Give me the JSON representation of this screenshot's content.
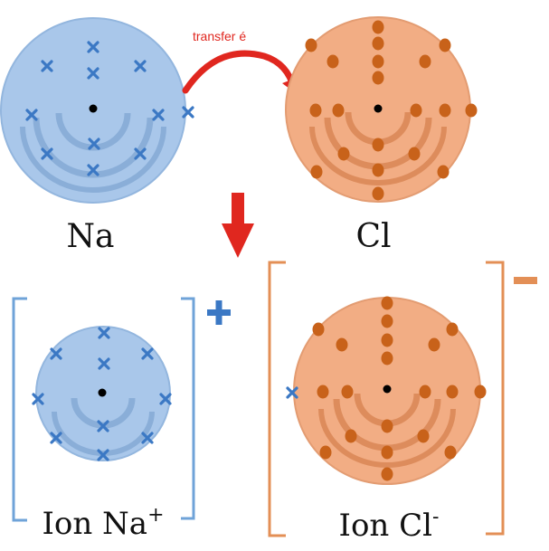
{
  "transfer_label": "transfer é",
  "atoms": {
    "na": {
      "label": "Na"
    },
    "cl": {
      "label": "Cl"
    }
  },
  "ions": {
    "na_ion": {
      "label_prefix": "Ion Na",
      "charge_sup": "+",
      "charge_sign": "+"
    },
    "cl_ion": {
      "label_prefix": "Ion Cl",
      "charge_sup": "-",
      "charge_sign": "−"
    }
  },
  "colors": {
    "na_fill": "#a9c7ea",
    "na_shell": "#8aaed8",
    "na_electron": "#3b78c4",
    "cl_fill": "#f2ad84",
    "cl_shell": "#dd8c5c",
    "cl_electron": "#c8621a",
    "arrow_red": "#e0271f",
    "na_bracket": "#6fa3d8",
    "cl_bracket": "#e38f56"
  }
}
